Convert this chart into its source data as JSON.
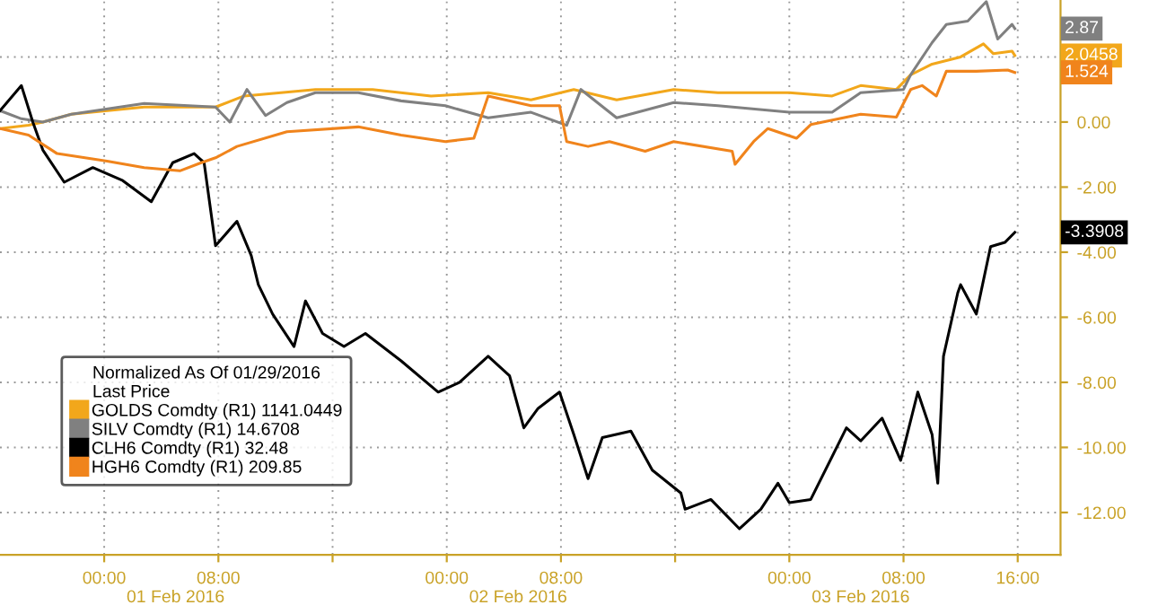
{
  "chart_data": {
    "type": "line",
    "legend_title": "Normalized As Of 01/29/2016\nLast Price",
    "series": [
      {
        "name": "GOLDS Comdty (R1) 1141.0449",
        "color": "#f2a71b",
        "x": [
          "2016-01-31T16:42",
          "2016-01-31T18:42",
          "2016-01-31T19:42",
          "2016-01-31T21:42",
          "2016-02-01T02:48",
          "2016-02-01T07:48",
          "2016-02-01T09:48",
          "2016-02-01T14:48",
          "2016-02-01T18:48",
          "2016-02-01T22:54",
          "2016-02-02T02:54",
          "2016-02-02T05:54",
          "2016-02-02T08:54",
          "2016-02-02T11:54",
          "2016-02-02T15:54",
          "2016-02-02T19:00",
          "2016-02-03T00:00",
          "2016-02-03T03:00",
          "2016-02-03T05:00",
          "2016-02-03T07:30",
          "2016-02-03T08:30",
          "2016-02-03T10:00",
          "2016-02-03T12:00",
          "2016-02-03T13:36",
          "2016-02-03T14:18",
          "2016-02-03T15:36",
          "2016-02-03T15:48"
        ],
        "values": [
          -0.2,
          -0.1,
          0.0,
          0.24,
          0.46,
          0.46,
          0.8,
          1.0,
          1.0,
          0.8,
          0.9,
          0.68,
          1.0,
          0.68,
          1.0,
          0.9,
          0.9,
          0.8,
          1.12,
          1.0,
          1.45,
          1.78,
          2.0,
          2.4,
          2.1,
          2.18,
          2.0458
        ]
      },
      {
        "name": "SILV Comdty (R1) 14.6708",
        "color": "#808080",
        "x": [
          "2016-01-31T16:42",
          "2016-01-31T18:12",
          "2016-01-31T19:42",
          "2016-01-31T21:42",
          "2016-02-01T02:48",
          "2016-02-01T07:48",
          "2016-02-01T08:48",
          "2016-02-01T10:00",
          "2016-02-01T11:18",
          "2016-02-01T12:48",
          "2016-02-01T14:48",
          "2016-02-01T17:48",
          "2016-02-01T20:48",
          "2016-02-01T23:54",
          "2016-02-02T02:54",
          "2016-02-02T05:54",
          "2016-02-02T08:24",
          "2016-02-02T09:24",
          "2016-02-02T11:54",
          "2016-02-02T15:54",
          "2016-02-02T19:00",
          "2016-02-03T00:00",
          "2016-02-03T03:00",
          "2016-02-03T05:00",
          "2016-02-03T08:00",
          "2016-02-03T08:30",
          "2016-02-03T10:00",
          "2016-02-03T11:00",
          "2016-02-03T12:30",
          "2016-02-03T13:48",
          "2016-02-03T14:36",
          "2016-02-03T15:36",
          "2016-02-03T15:48"
        ],
        "values": [
          0.35,
          0.1,
          0.0,
          0.24,
          0.57,
          0.46,
          0.0,
          1.0,
          0.2,
          0.6,
          0.9,
          0.9,
          0.65,
          0.5,
          0.13,
          0.3,
          -0.1,
          1.0,
          0.13,
          0.6,
          0.5,
          0.3,
          0.3,
          0.9,
          1.0,
          1.45,
          2.44,
          3.0,
          3.1,
          3.7,
          2.55,
          3.0,
          2.87
        ]
      },
      {
        "name": "CLH6 Comdty (R1) 32.48",
        "color": "#000000",
        "x": [
          "2016-01-31T16:42",
          "2016-01-31T18:12",
          "2016-01-31T19:00",
          "2016-01-31T19:42",
          "2016-01-31T21:12",
          "2016-01-31T23:12",
          "2016-02-01T01:18",
          "2016-02-01T03:18",
          "2016-02-01T04:48",
          "2016-02-01T06:18",
          "2016-02-01T07:00",
          "2016-02-01T07:48",
          "2016-02-01T09:18",
          "2016-02-01T10:18",
          "2016-02-01T10:48",
          "2016-02-01T11:48",
          "2016-02-01T13:18",
          "2016-02-01T14:06",
          "2016-02-01T15:18",
          "2016-02-01T16:48",
          "2016-02-01T18:18",
          "2016-02-01T20:48",
          "2016-02-01T23:24",
          "2016-02-02T00:54",
          "2016-02-02T02:54",
          "2016-02-02T04:24",
          "2016-02-02T05:24",
          "2016-02-02T06:24",
          "2016-02-02T07:54",
          "2016-02-02T08:54",
          "2016-02-02T09:54",
          "2016-02-02T10:54",
          "2016-02-02T12:54",
          "2016-02-02T14:24",
          "2016-02-02T16:24",
          "2016-02-02T16:42",
          "2016-02-02T18:30",
          "2016-02-02T20:30",
          "2016-02-02T22:00",
          "2016-02-02T23:12",
          "2016-02-03T00:00",
          "2016-02-03T01:30",
          "2016-02-03T04:00",
          "2016-02-03T05:00",
          "2016-02-03T06:30",
          "2016-02-03T07:48",
          "2016-02-03T09:00",
          "2016-02-03T10:00",
          "2016-02-03T10:24",
          "2016-02-03T10:48",
          "2016-02-03T11:48",
          "2016-02-03T12:00",
          "2016-02-03T13:06",
          "2016-02-03T14:06",
          "2016-02-03T15:06",
          "2016-02-03T15:48"
        ],
        "values": [
          0.35,
          1.12,
          0.0,
          -0.86,
          -1.85,
          -1.4,
          -1.8,
          -2.45,
          -1.25,
          -0.97,
          -1.25,
          -3.8,
          -3.05,
          -4.1,
          -5.0,
          -5.9,
          -6.9,
          -5.5,
          -6.5,
          -6.9,
          -6.5,
          -7.34,
          -8.3,
          -8.0,
          -7.2,
          -7.8,
          -9.4,
          -8.8,
          -8.3,
          -9.6,
          -10.96,
          -9.7,
          -9.5,
          -10.7,
          -11.4,
          -11.9,
          -11.6,
          -12.5,
          -11.9,
          -11.1,
          -11.7,
          -11.6,
          -9.4,
          -9.8,
          -9.1,
          -10.4,
          -8.3,
          -9.6,
          -11.1,
          -7.2,
          -5.25,
          -5.0,
          -5.9,
          -3.83,
          -3.7,
          -3.3908
        ]
      },
      {
        "name": "HGH6 Comdty (R1) 209.85",
        "color": "#f0841c",
        "x": [
          "2016-01-31T16:42",
          "2016-01-31T18:42",
          "2016-01-31T20:42",
          "2016-02-01T00:12",
          "2016-02-01T02:48",
          "2016-02-01T05:18",
          "2016-02-01T06:48",
          "2016-02-01T07:48",
          "2016-02-01T09:18",
          "2016-02-01T12:48",
          "2016-02-01T17:48",
          "2016-02-01T20:48",
          "2016-02-01T23:54",
          "2016-02-02T01:54",
          "2016-02-02T02:54",
          "2016-02-02T05:54",
          "2016-02-02T07:54",
          "2016-02-02T08:24",
          "2016-02-02T09:54",
          "2016-02-02T11:24",
          "2016-02-02T13:54",
          "2016-02-02T15:54",
          "2016-02-02T20:00",
          "2016-02-02T20:12",
          "2016-02-02T21:30",
          "2016-02-02T22:30",
          "2016-02-03T00:30",
          "2016-02-03T01:30",
          "2016-02-03T05:00",
          "2016-02-03T07:30",
          "2016-02-03T08:30",
          "2016-02-03T09:18",
          "2016-02-03T10:18",
          "2016-02-03T11:00",
          "2016-02-03T13:06",
          "2016-02-03T15:18",
          "2016-02-03T15:48"
        ],
        "values": [
          -0.2,
          -0.4,
          -0.97,
          -1.2,
          -1.4,
          -1.5,
          -1.25,
          -1.1,
          -0.75,
          -0.3,
          -0.15,
          -0.4,
          -0.6,
          -0.5,
          0.8,
          0.5,
          0.5,
          -0.6,
          -0.75,
          -0.6,
          -0.9,
          -0.6,
          -0.9,
          -1.3,
          -0.6,
          -0.2,
          -0.5,
          -0.08,
          0.24,
          0.15,
          1.0,
          1.12,
          0.8,
          1.56,
          1.56,
          1.6,
          1.524
        ]
      }
    ],
    "annotations": [
      {
        "text": "2.0458",
        "x": "2016-02-03T15:48",
        "y": 2.0458
      },
      {
        "text": "2.87",
        "x": "2016-02-03T15:48",
        "y": 2.87
      },
      {
        "text": "-3.3908",
        "x": "2016-02-03T15:48",
        "y": -3.3908
      },
      {
        "text": "1.524",
        "x": "2016-02-03T15:48",
        "y": 1.524
      }
    ],
    "xlim": [
      "2016-01-31T16:42",
      "2016-02-03T19:00"
    ],
    "xticks": [
      {
        "value": "2016-02-01T00:00",
        "label": "00:00"
      },
      {
        "value": "2016-02-01T08:00",
        "label": "08:00"
      },
      {
        "value": "2016-02-01T16:00",
        "label": null
      },
      {
        "value": "2016-02-02T00:00",
        "label": "00:00"
      },
      {
        "value": "2016-02-02T08:00",
        "label": "08:00"
      },
      {
        "value": "2016-02-02T16:00",
        "label": null
      },
      {
        "value": "2016-02-03T00:00",
        "label": "00:00"
      },
      {
        "value": "2016-02-03T08:00",
        "label": "08:00"
      },
      {
        "value": "2016-02-03T16:00",
        "label": "16:00"
      }
    ],
    "x2lim": [
      "2016-01-31T16:42",
      "2016-02-03T19:00"
    ],
    "x2ticks": [
      {
        "value": "2016-02-01T05:00",
        "label": "01 Feb 2016"
      },
      {
        "value": "2016-02-02T05:00",
        "label": "02 Feb 2016"
      },
      {
        "value": "2016-02-03T05:00",
        "label": "03 Feb 2016"
      }
    ],
    "ylim": [
      -13.3,
      3.75
    ],
    "yticks": [
      {
        "value": -12,
        "label": "-12.00"
      },
      {
        "value": -10,
        "label": "-10.00"
      },
      {
        "value": -8,
        "label": "-8.00"
      },
      {
        "value": -6,
        "label": "-6.00"
      },
      {
        "value": -4,
        "label": "-4.00"
      },
      {
        "value": -2,
        "label": "-2.00"
      },
      {
        "value": 0,
        "label": "0.00"
      },
      {
        "value": 2,
        "label": null
      }
    ],
    "grid": true,
    "legend": "lower left",
    "line_style": "solid",
    "marker": "none"
  }
}
